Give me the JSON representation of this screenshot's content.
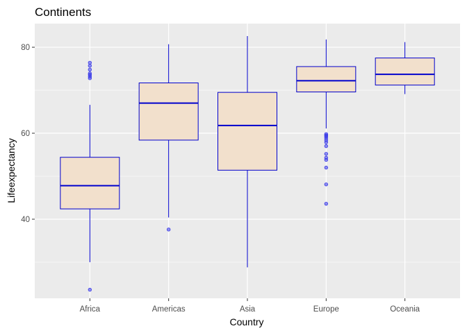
{
  "chart_data": {
    "type": "boxplot",
    "title": "Continents",
    "xlabel": "Country",
    "ylabel": "Lifeexpectancy",
    "ylim": [
      21.6,
      85.5
    ],
    "yticks": [
      40,
      60,
      80
    ],
    "categories": [
      "Africa",
      "Americas",
      "Asia",
      "Europe",
      "Oceania"
    ],
    "grid": true,
    "legend": "none",
    "colors": {
      "panel": "#EBEBEB",
      "grid": "#FFFFFF",
      "box_fill": "#F2E0CC",
      "box_stroke": "#0000CD",
      "outlier": "#3B3BE8"
    },
    "boxes": [
      {
        "category": "Africa",
        "whisker_low": 30.0,
        "q1": 42.4,
        "median": 47.8,
        "q3": 54.4,
        "whisker_high": 66.6,
        "outliers": [
          23.6,
          76.4,
          75.7,
          74.8,
          73.9,
          73.6,
          73.2,
          72.8
        ]
      },
      {
        "category": "Americas",
        "whisker_low": 40.4,
        "q1": 58.4,
        "median": 67.0,
        "q3": 71.7,
        "whisker_high": 80.7,
        "outliers": [
          37.6
        ]
      },
      {
        "category": "Asia",
        "whisker_low": 28.8,
        "q1": 51.4,
        "median": 61.8,
        "q3": 69.5,
        "whisker_high": 82.6,
        "outliers": []
      },
      {
        "category": "Europe",
        "whisker_low": 61.1,
        "q1": 69.6,
        "median": 72.2,
        "q3": 75.5,
        "whisker_high": 81.8,
        "outliers": [
          59.8,
          59.5,
          59.3,
          58.9,
          58.4,
          57.9,
          57.0,
          55.2,
          54.3,
          53.8,
          52.0,
          48.1,
          43.6
        ]
      },
      {
        "category": "Oceania",
        "whisker_low": 69.1,
        "q1": 71.2,
        "median": 73.7,
        "q3": 77.5,
        "whisker_high": 81.2,
        "outliers": []
      }
    ]
  }
}
